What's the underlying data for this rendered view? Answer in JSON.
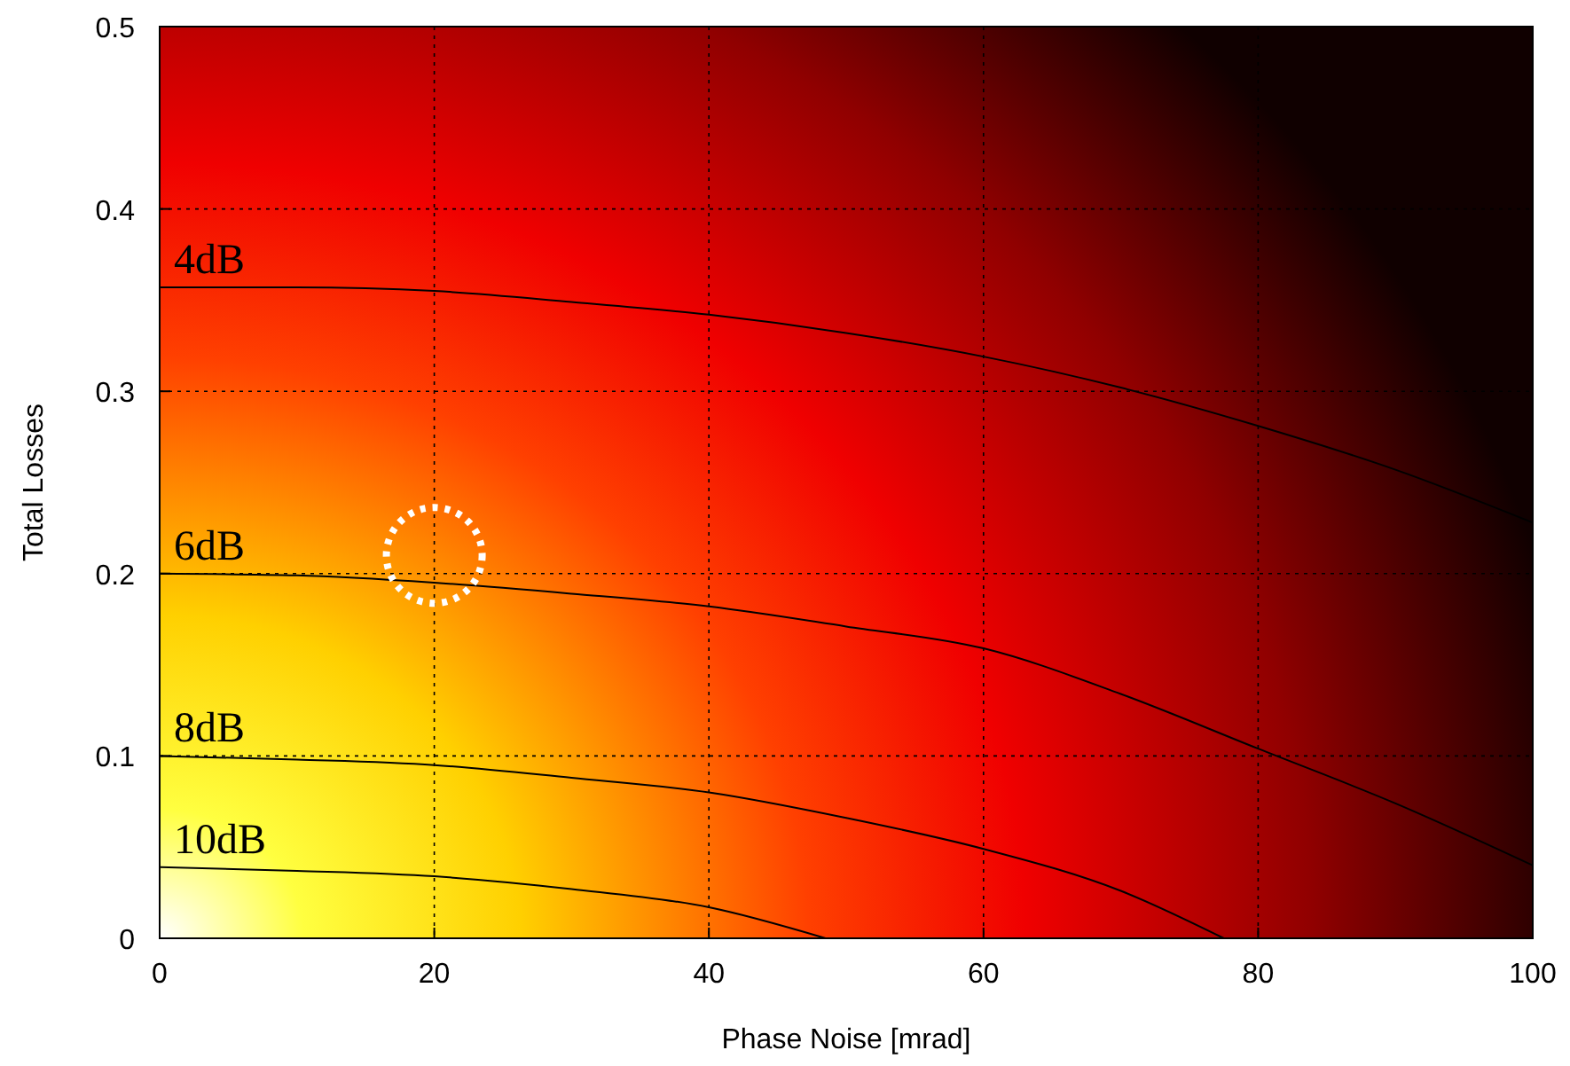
{
  "chart_data": {
    "type": "line",
    "xlabel": "Phase Noise [mrad]",
    "ylabel": "Total Losses",
    "xlim": [
      0,
      100
    ],
    "xticks": [
      0,
      20,
      40,
      60,
      80,
      100
    ],
    "ylim": [
      0,
      0.5
    ],
    "yticks": [
      0,
      0.1,
      0.2,
      0.3,
      0.4,
      0.5
    ],
    "grid": true,
    "marker": "none",
    "line_style": "solid",
    "series": [
      {
        "name": "4dB",
        "color": "#000000",
        "x": [
          0,
          10,
          20,
          30,
          40,
          50,
          60,
          70,
          80,
          90,
          100
        ],
        "values": [
          0.357,
          0.357,
          0.355,
          0.349,
          0.342,
          0.332,
          0.319,
          0.302,
          0.281,
          0.257,
          0.228
        ]
      },
      {
        "name": "6dB",
        "color": "#000000",
        "x": [
          0,
          10,
          20,
          30,
          40,
          50,
          60,
          70,
          80,
          90,
          100
        ],
        "values": [
          0.2,
          0.199,
          0.195,
          0.189,
          0.182,
          0.171,
          0.159,
          0.134,
          0.104,
          0.074,
          0.04
        ]
      },
      {
        "name": "8dB",
        "color": "#000000",
        "x": [
          0,
          10,
          20,
          30,
          40,
          50,
          60,
          70,
          77.5
        ],
        "values": [
          0.1,
          0.098,
          0.095,
          0.088,
          0.08,
          0.066,
          0.049,
          0.026,
          0
        ]
      },
      {
        "name": "10dB",
        "color": "#000000",
        "x": [
          0,
          10,
          20,
          30,
          40,
          48.5
        ],
        "values": [
          0.039,
          0.037,
          0.034,
          0.027,
          0.017,
          0
        ]
      }
    ]
  }
}
